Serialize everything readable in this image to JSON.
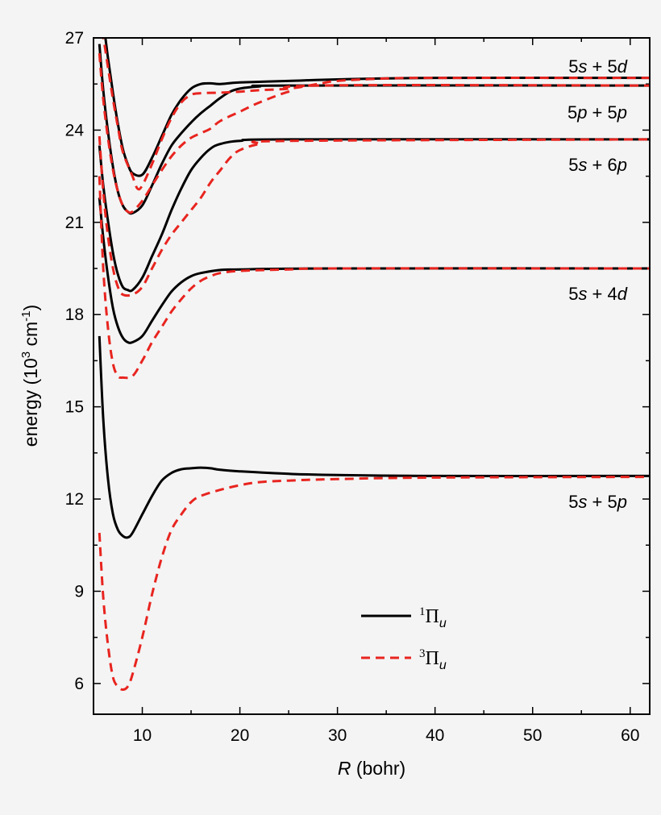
{
  "chart_data": {
    "type": "line",
    "xlabel": {
      "italic": "R",
      "rest": " (bohr)"
    },
    "ylabel": {
      "prefix": "energy (10",
      "sup1": "3",
      "mid": " cm",
      "sup2": "-1",
      "suffix": ")"
    },
    "xlim": [
      5,
      62
    ],
    "ylim": [
      5,
      27
    ],
    "xticks": [
      10,
      20,
      30,
      40,
      50,
      60
    ],
    "yticks": [
      6,
      9,
      12,
      15,
      18,
      21,
      24,
      27
    ],
    "asymptote_labels": [
      {
        "a": "5",
        "ai": "s",
        "mid": " + 5",
        "bi": "d",
        "energy": 25.7
      },
      {
        "a": "5",
        "ai": "p",
        "mid": " + 5",
        "bi": "p",
        "energy": 25.45
      },
      {
        "a": "5",
        "ai": "s",
        "mid": " + 6",
        "bi": "p",
        "energy": 23.7
      },
      {
        "a": "5",
        "ai": "s",
        "mid": " + 4",
        "bi": "d",
        "energy": 19.5
      },
      {
        "a": "5",
        "ai": "s",
        "mid": " + 5",
        "bi": "p",
        "energy": 12.75
      }
    ],
    "legend": [
      {
        "sup": "1",
        "symbol": "Π",
        "sub": "u",
        "style": "solid",
        "color": "#000000"
      },
      {
        "sup": "3",
        "symbol": "Π",
        "sub": "u",
        "style": "dashed",
        "color": "#e8241f"
      }
    ],
    "series": [
      {
        "group": "singlet",
        "color": "#000000",
        "style": "solid",
        "points": [
          [
            5.6,
            17.3
          ],
          [
            6,
            14.6
          ],
          [
            6.5,
            12.6
          ],
          [
            7,
            11.5
          ],
          [
            7.5,
            11.0
          ],
          [
            8,
            10.8
          ],
          [
            8.5,
            10.75
          ],
          [
            9,
            10.9
          ],
          [
            10,
            11.5
          ],
          [
            11,
            12.1
          ],
          [
            12,
            12.6
          ],
          [
            13,
            12.85
          ],
          [
            14,
            12.97
          ],
          [
            15,
            13.0
          ],
          [
            16,
            13.02
          ],
          [
            17,
            13.0
          ],
          [
            18,
            12.95
          ],
          [
            20,
            12.9
          ],
          [
            25,
            12.82
          ],
          [
            30,
            12.78
          ],
          [
            40,
            12.75
          ],
          [
            62,
            12.75
          ]
        ]
      },
      {
        "group": "triplet",
        "color": "#e8241f",
        "style": "dashed",
        "points": [
          [
            5.6,
            10.9
          ],
          [
            6,
            8.8
          ],
          [
            6.5,
            7.2
          ],
          [
            7,
            6.2
          ],
          [
            7.5,
            5.9
          ],
          [
            8,
            5.8
          ],
          [
            8.5,
            5.9
          ],
          [
            9,
            6.3
          ],
          [
            10,
            7.5
          ],
          [
            11,
            8.9
          ],
          [
            12,
            10.1
          ],
          [
            13,
            11.0
          ],
          [
            14,
            11.5
          ],
          [
            15,
            11.9
          ],
          [
            16,
            12.1
          ],
          [
            18,
            12.3
          ],
          [
            20,
            12.45
          ],
          [
            22,
            12.55
          ],
          [
            25,
            12.6
          ],
          [
            30,
            12.65
          ],
          [
            40,
            12.7
          ],
          [
            62,
            12.72
          ]
        ]
      },
      {
        "group": "singlet",
        "color": "#000000",
        "style": "solid",
        "points": [
          [
            5.6,
            21.8
          ],
          [
            6,
            20.5
          ],
          [
            6.5,
            19.2
          ],
          [
            7,
            18.2
          ],
          [
            7.5,
            17.6
          ],
          [
            8,
            17.25
          ],
          [
            8.5,
            17.1
          ],
          [
            9,
            17.1
          ],
          [
            10,
            17.3
          ],
          [
            11,
            17.8
          ],
          [
            12,
            18.3
          ],
          [
            13,
            18.75
          ],
          [
            14,
            19.05
          ],
          [
            15,
            19.25
          ],
          [
            16,
            19.35
          ],
          [
            18,
            19.45
          ],
          [
            20,
            19.47
          ],
          [
            30,
            19.5
          ],
          [
            62,
            19.5
          ]
        ]
      },
      {
        "group": "triplet",
        "color": "#e8241f",
        "style": "dashed",
        "points": [
          [
            5.6,
            22.5
          ],
          [
            6,
            19.5
          ],
          [
            6.5,
            17.5
          ],
          [
            7,
            16.4
          ],
          [
            7.5,
            16.0
          ],
          [
            8,
            15.95
          ],
          [
            9,
            16.0
          ],
          [
            10,
            16.5
          ],
          [
            11,
            17.1
          ],
          [
            12,
            17.6
          ],
          [
            13,
            18.1
          ],
          [
            14,
            18.5
          ],
          [
            15,
            18.85
          ],
          [
            16,
            19.1
          ],
          [
            17,
            19.25
          ],
          [
            18,
            19.35
          ],
          [
            20,
            19.42
          ],
          [
            25,
            19.47
          ],
          [
            30,
            19.5
          ],
          [
            62,
            19.5
          ]
        ]
      },
      {
        "group": "singlet",
        "color": "#000000",
        "style": "solid",
        "points": [
          [
            5.6,
            23.5
          ],
          [
            6,
            22.2
          ],
          [
            6.5,
            21.0
          ],
          [
            7,
            20.0
          ],
          [
            7.5,
            19.3
          ],
          [
            8,
            18.9
          ],
          [
            8.5,
            18.8
          ],
          [
            9,
            18.8
          ],
          [
            10,
            19.2
          ],
          [
            11,
            19.9
          ],
          [
            12,
            20.6
          ],
          [
            13,
            21.4
          ],
          [
            14,
            22.1
          ],
          [
            15,
            22.7
          ],
          [
            16,
            23.1
          ],
          [
            17,
            23.4
          ],
          [
            18,
            23.55
          ],
          [
            20,
            23.65
          ],
          [
            25,
            23.7
          ],
          [
            62,
            23.7
          ]
        ]
      },
      {
        "group": "triplet",
        "color": "#e8241f",
        "style": "dashed",
        "points": [
          [
            5.6,
            23.8
          ],
          [
            6,
            22.0
          ],
          [
            6.5,
            20.5
          ],
          [
            7,
            19.5
          ],
          [
            7.5,
            18.9
          ],
          [
            8,
            18.65
          ],
          [
            9,
            18.65
          ],
          [
            10,
            18.9
          ],
          [
            11,
            19.5
          ],
          [
            12,
            20.1
          ],
          [
            13,
            20.6
          ],
          [
            14,
            21.0
          ],
          [
            15,
            21.4
          ],
          [
            16,
            21.8
          ],
          [
            17,
            22.3
          ],
          [
            18,
            22.7
          ],
          [
            19,
            23.1
          ],
          [
            20,
            23.35
          ],
          [
            22,
            23.55
          ],
          [
            25,
            23.65
          ],
          [
            62,
            23.7
          ]
        ]
      },
      {
        "group": "singlet",
        "color": "#000000",
        "style": "solid",
        "points": [
          [
            5.6,
            26.8
          ],
          [
            6,
            25.3
          ],
          [
            6.5,
            23.9
          ],
          [
            7,
            22.8
          ],
          [
            7.5,
            22.0
          ],
          [
            8,
            21.55
          ],
          [
            8.5,
            21.35
          ],
          [
            9,
            21.3
          ],
          [
            10,
            21.55
          ],
          [
            11,
            22.2
          ],
          [
            12,
            22.9
          ],
          [
            13,
            23.5
          ],
          [
            14,
            23.9
          ],
          [
            15,
            24.25
          ],
          [
            16,
            24.55
          ],
          [
            17,
            24.8
          ],
          [
            18,
            25.05
          ],
          [
            19,
            25.25
          ],
          [
            20,
            25.35
          ],
          [
            22,
            25.42
          ],
          [
            25,
            25.45
          ],
          [
            62,
            25.45
          ]
        ]
      },
      {
        "group": "triplet",
        "color": "#e8241f",
        "style": "dashed",
        "points": [
          [
            5.6,
            26.5
          ],
          [
            6,
            25.0
          ],
          [
            6.5,
            23.7
          ],
          [
            7,
            22.7
          ],
          [
            7.5,
            22.0
          ],
          [
            8,
            21.55
          ],
          [
            8.5,
            21.35
          ],
          [
            9,
            21.35
          ],
          [
            10,
            21.7
          ],
          [
            11,
            22.2
          ],
          [
            12,
            22.7
          ],
          [
            13,
            23.15
          ],
          [
            14,
            23.5
          ],
          [
            15,
            23.75
          ],
          [
            16,
            23.9
          ],
          [
            17,
            24.05
          ],
          [
            18,
            24.3
          ],
          [
            20,
            24.6
          ],
          [
            22,
            24.9
          ],
          [
            25,
            25.25
          ],
          [
            28,
            25.45
          ],
          [
            62,
            25.45
          ]
        ]
      },
      {
        "group": "singlet",
        "color": "#000000",
        "style": "solid",
        "points": [
          [
            5.6,
            27.8
          ],
          [
            6,
            27.5
          ],
          [
            6.5,
            26.3
          ],
          [
            7,
            25.2
          ],
          [
            7.5,
            24.2
          ],
          [
            8,
            23.4
          ],
          [
            8.5,
            22.9
          ],
          [
            9,
            22.6
          ],
          [
            10,
            22.55
          ],
          [
            11,
            23.1
          ],
          [
            12,
            23.8
          ],
          [
            13,
            24.5
          ],
          [
            14,
            25.0
          ],
          [
            15,
            25.35
          ],
          [
            16,
            25.5
          ],
          [
            17,
            25.52
          ],
          [
            18,
            25.5
          ],
          [
            20,
            25.55
          ],
          [
            25,
            25.6
          ],
          [
            30,
            25.65
          ],
          [
            40,
            25.7
          ],
          [
            62,
            25.7
          ]
        ]
      },
      {
        "group": "triplet",
        "color": "#e8241f",
        "style": "dashed",
        "points": [
          [
            5.6,
            27.2
          ],
          [
            6,
            27.0
          ],
          [
            6.5,
            26.0
          ],
          [
            7,
            25.0
          ],
          [
            7.5,
            24.1
          ],
          [
            8,
            23.3
          ],
          [
            9,
            22.5
          ],
          [
            9.5,
            22.1
          ],
          [
            10,
            22.2
          ],
          [
            11,
            22.9
          ],
          [
            12,
            23.7
          ],
          [
            13,
            24.4
          ],
          [
            14,
            24.9
          ],
          [
            15,
            25.15
          ],
          [
            16,
            25.2
          ],
          [
            18,
            25.22
          ],
          [
            20,
            25.25
          ],
          [
            22,
            25.3
          ],
          [
            25,
            25.35
          ],
          [
            28,
            25.5
          ],
          [
            30,
            25.6
          ],
          [
            35,
            25.68
          ],
          [
            40,
            25.7
          ],
          [
            62,
            25.7
          ]
        ]
      }
    ]
  }
}
